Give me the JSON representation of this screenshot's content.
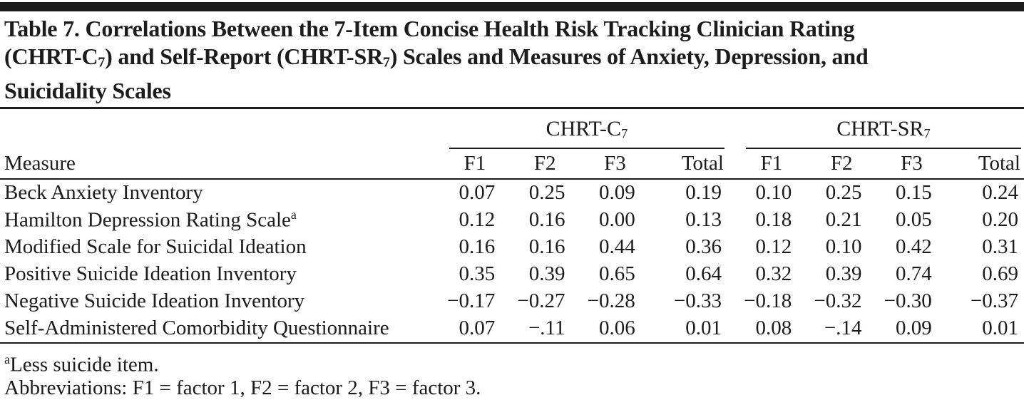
{
  "title": {
    "line1": "Table 7. Correlations Between the 7-Item Concise Health Risk Tracking Clinician Rating",
    "line2": {
      "pre": "(CHRT-C",
      "sub1": "7",
      "mid": ") and Self-Report (CHRT-SR",
      "sub2": "7",
      "post": ") Scales and Measures of Anxiety, Depression, and"
    },
    "line3": "Suicidality Scales"
  },
  "table": {
    "measure_header": "Measure",
    "groups": [
      {
        "name": "CHRT-C",
        "sub": "7"
      },
      {
        "name": "CHRT-SR",
        "sub": "7"
      }
    ],
    "subheaders": [
      "F1",
      "F2",
      "F3",
      "Total",
      "F1",
      "F2",
      "F3",
      "Total"
    ],
    "rows": [
      {
        "measure": "Beck Anxiety Inventory",
        "values": [
          "0.07",
          "0.25",
          "0.09",
          "0.19",
          "0.10",
          "0.25",
          "0.15",
          "0.24"
        ]
      },
      {
        "measure": "Hamilton Depression Rating Scale",
        "measure_sup": "a",
        "values": [
          "0.12",
          "0.16",
          "0.00",
          "0.13",
          "0.18",
          "0.21",
          "0.05",
          "0.20"
        ]
      },
      {
        "measure": "Modified Scale for Suicidal Ideation",
        "values": [
          "0.16",
          "0.16",
          "0.44",
          "0.36",
          "0.12",
          "0.10",
          "0.42",
          "0.31"
        ]
      },
      {
        "measure": "Positive Suicide Ideation Inventory",
        "values": [
          "0.35",
          "0.39",
          "0.65",
          "0.64",
          "0.32",
          "0.39",
          "0.74",
          "0.69"
        ]
      },
      {
        "measure": "Negative Suicide Ideation Inventory",
        "values": [
          "−0.17",
          "−0.27",
          "−0.28",
          "−0.33",
          "−0.18",
          "−0.32",
          "−0.30",
          "−0.37"
        ]
      },
      {
        "measure": "Self-Administered Comorbidity Questionnaire",
        "values": [
          "0.07",
          "−.11",
          "0.06",
          "0.01",
          "0.08",
          "−.14",
          "0.09",
          "0.01"
        ]
      }
    ]
  },
  "footnotes": {
    "note_a_marker": "a",
    "note_a_text": "Less suicide item.",
    "abbreviations": "Abbreviations: F1 = factor 1, F2 = factor 2, F3 = factor 3."
  },
  "colors": {
    "text": "#1c1c1c",
    "rule": "#1c1c1c",
    "background": "#ffffff"
  }
}
